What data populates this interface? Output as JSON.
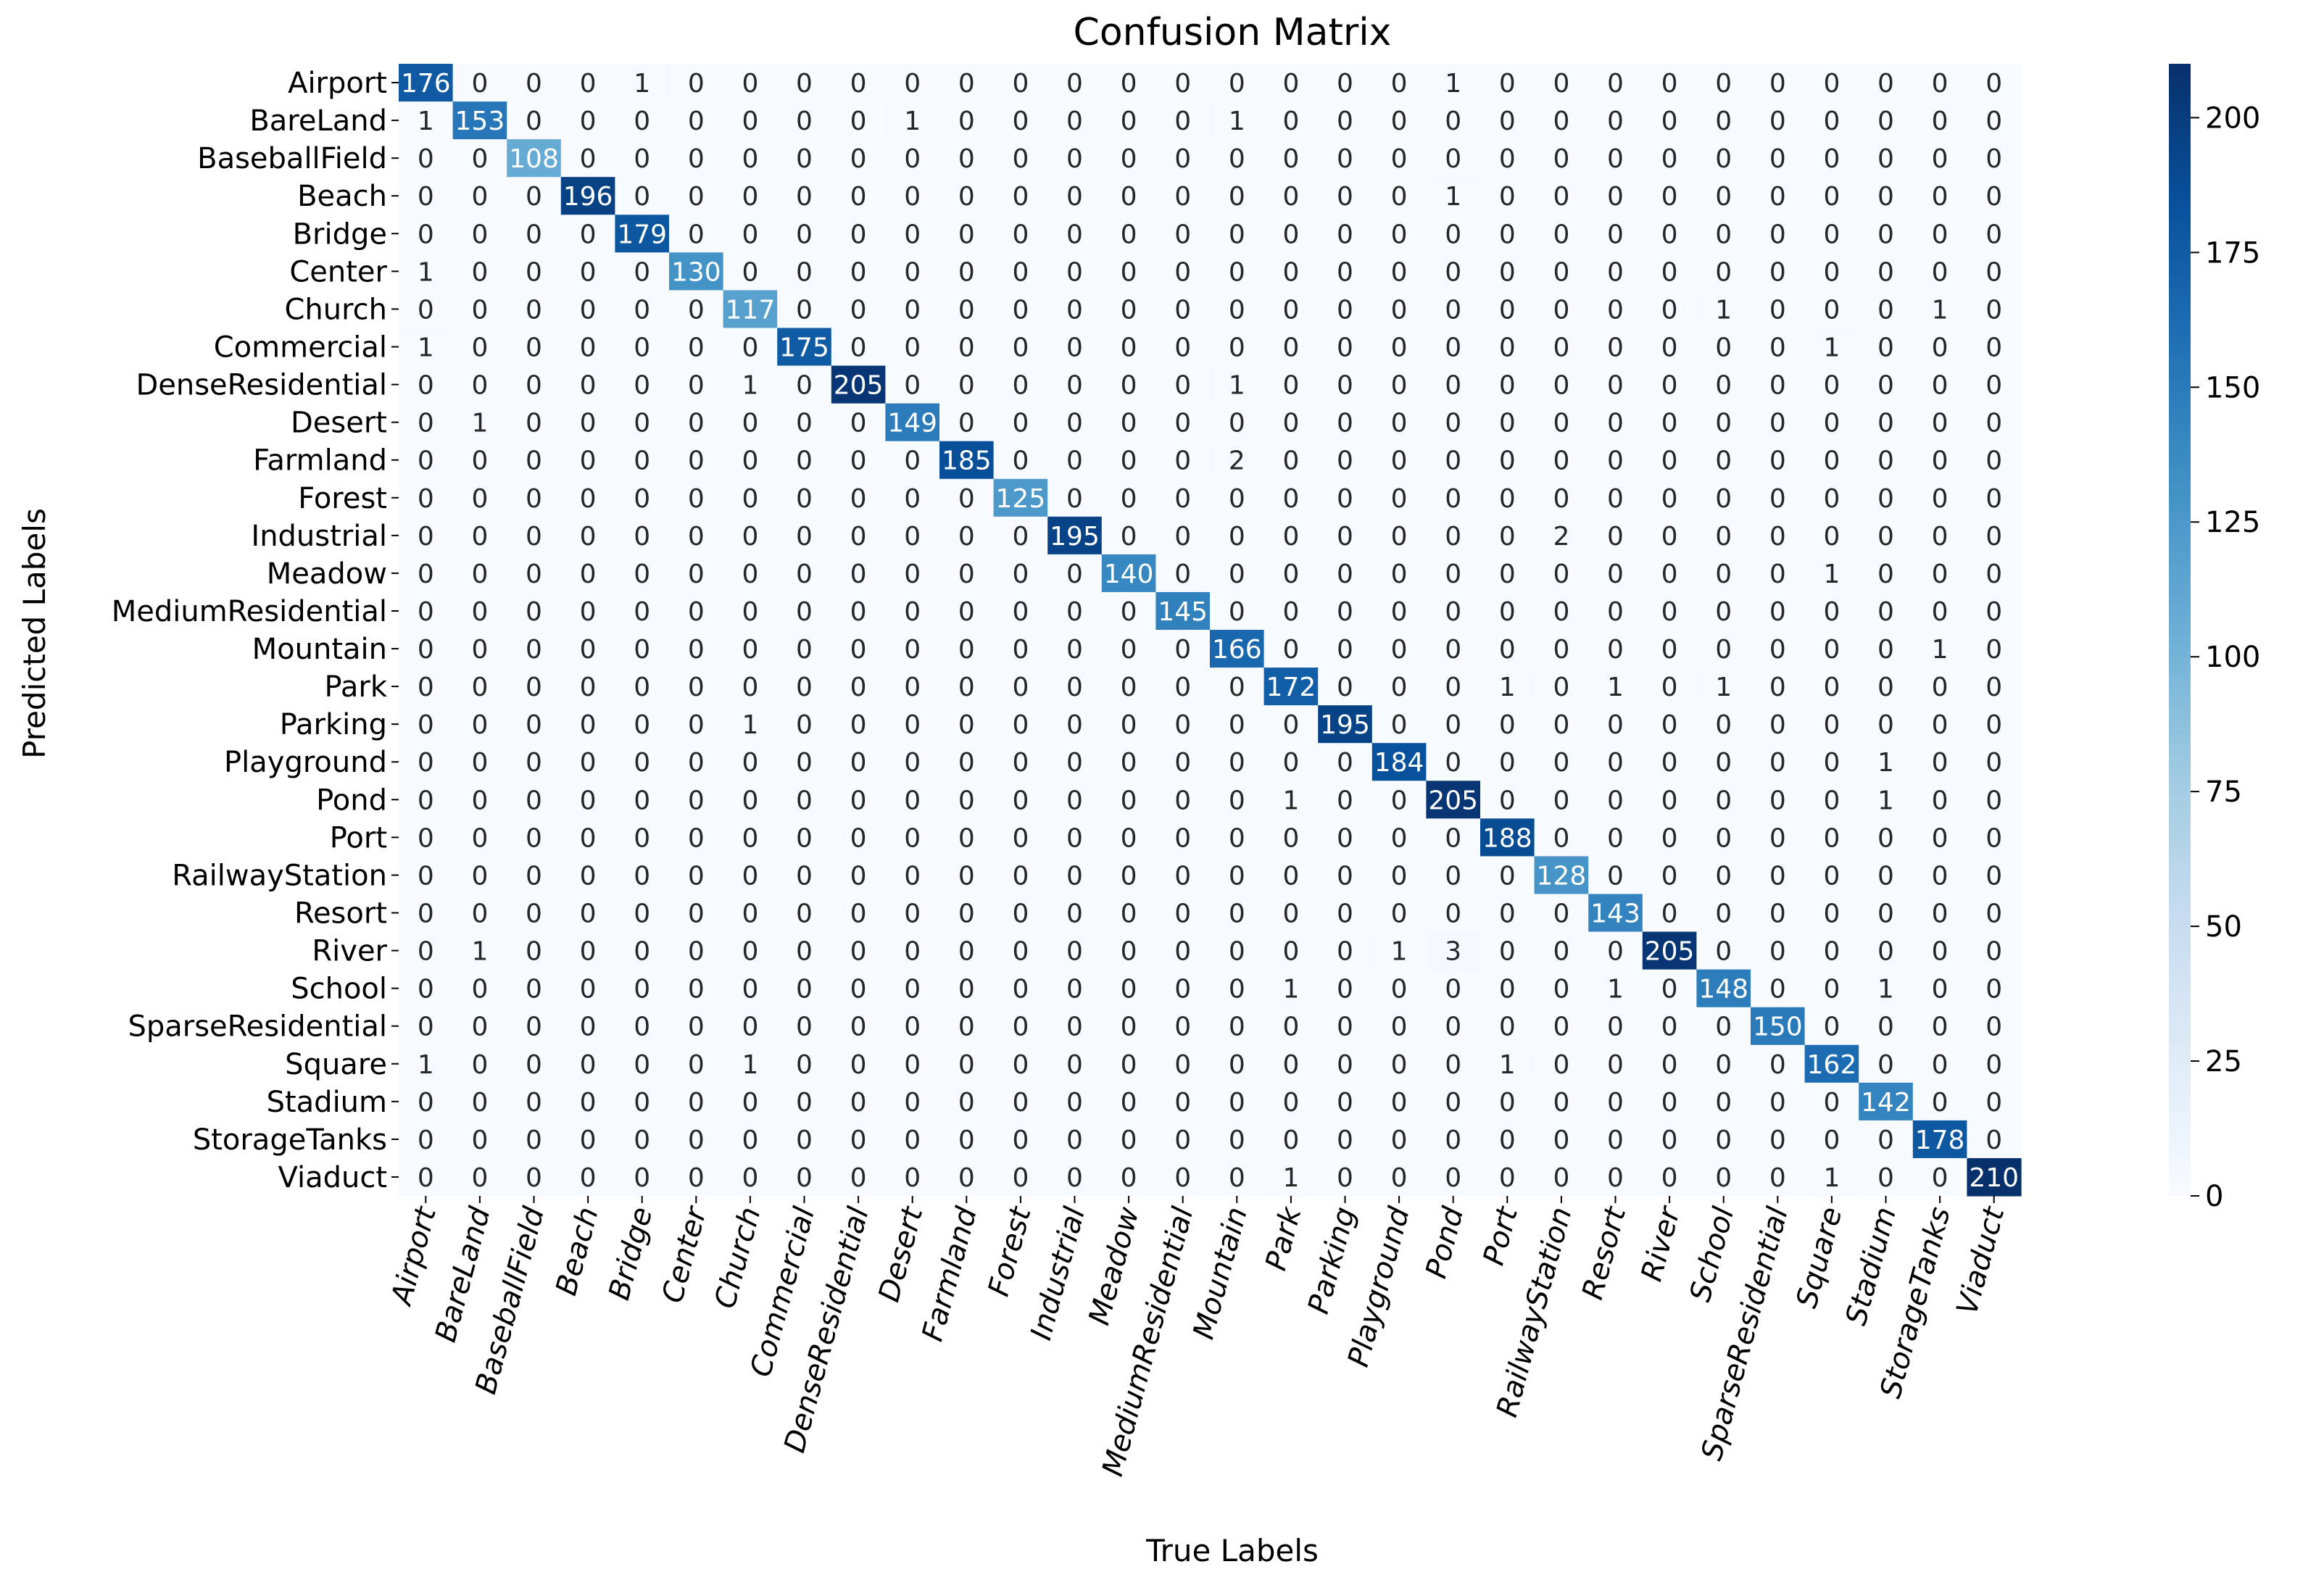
{
  "chart_data": {
    "type": "heatmap",
    "title": "Confusion Matrix",
    "xlabel": "True Labels",
    "ylabel": "Predicted Labels",
    "categories": [
      "Airport",
      "BareLand",
      "BaseballField",
      "Beach",
      "Bridge",
      "Center",
      "Church",
      "Commercial",
      "DenseResidential",
      "Desert",
      "Farmland",
      "Forest",
      "Industrial",
      "Meadow",
      "MediumResidential",
      "Mountain",
      "Park",
      "Parking",
      "Playground",
      "Pond",
      "Port",
      "RailwayStation",
      "Resort",
      "River",
      "School",
      "SparseResidential",
      "Square",
      "Stadium",
      "StorageTanks",
      "Viaduct"
    ],
    "matrix": [
      [
        176,
        0,
        0,
        0,
        1,
        0,
        0,
        0,
        0,
        0,
        0,
        0,
        0,
        0,
        0,
        0,
        0,
        0,
        0,
        1,
        0,
        0,
        0,
        0,
        0,
        0,
        0,
        0,
        0,
        0
      ],
      [
        1,
        153,
        0,
        0,
        0,
        0,
        0,
        0,
        0,
        1,
        0,
        0,
        0,
        0,
        0,
        1,
        0,
        0,
        0,
        0,
        0,
        0,
        0,
        0,
        0,
        0,
        0,
        0,
        0,
        0
      ],
      [
        0,
        0,
        108,
        0,
        0,
        0,
        0,
        0,
        0,
        0,
        0,
        0,
        0,
        0,
        0,
        0,
        0,
        0,
        0,
        0,
        0,
        0,
        0,
        0,
        0,
        0,
        0,
        0,
        0,
        0
      ],
      [
        0,
        0,
        0,
        196,
        0,
        0,
        0,
        0,
        0,
        0,
        0,
        0,
        0,
        0,
        0,
        0,
        0,
        0,
        0,
        1,
        0,
        0,
        0,
        0,
        0,
        0,
        0,
        0,
        0,
        0
      ],
      [
        0,
        0,
        0,
        0,
        179,
        0,
        0,
        0,
        0,
        0,
        0,
        0,
        0,
        0,
        0,
        0,
        0,
        0,
        0,
        0,
        0,
        0,
        0,
        0,
        0,
        0,
        0,
        0,
        0,
        0
      ],
      [
        1,
        0,
        0,
        0,
        0,
        130,
        0,
        0,
        0,
        0,
        0,
        0,
        0,
        0,
        0,
        0,
        0,
        0,
        0,
        0,
        0,
        0,
        0,
        0,
        0,
        0,
        0,
        0,
        0,
        0
      ],
      [
        0,
        0,
        0,
        0,
        0,
        0,
        117,
        0,
        0,
        0,
        0,
        0,
        0,
        0,
        0,
        0,
        0,
        0,
        0,
        0,
        0,
        0,
        0,
        0,
        1,
        0,
        0,
        0,
        1,
        0
      ],
      [
        1,
        0,
        0,
        0,
        0,
        0,
        0,
        175,
        0,
        0,
        0,
        0,
        0,
        0,
        0,
        0,
        0,
        0,
        0,
        0,
        0,
        0,
        0,
        0,
        0,
        0,
        1,
        0,
        0,
        0
      ],
      [
        0,
        0,
        0,
        0,
        0,
        0,
        1,
        0,
        205,
        0,
        0,
        0,
        0,
        0,
        0,
        1,
        0,
        0,
        0,
        0,
        0,
        0,
        0,
        0,
        0,
        0,
        0,
        0,
        0,
        0
      ],
      [
        0,
        1,
        0,
        0,
        0,
        0,
        0,
        0,
        0,
        149,
        0,
        0,
        0,
        0,
        0,
        0,
        0,
        0,
        0,
        0,
        0,
        0,
        0,
        0,
        0,
        0,
        0,
        0,
        0,
        0
      ],
      [
        0,
        0,
        0,
        0,
        0,
        0,
        0,
        0,
        0,
        0,
        185,
        0,
        0,
        0,
        0,
        2,
        0,
        0,
        0,
        0,
        0,
        0,
        0,
        0,
        0,
        0,
        0,
        0,
        0,
        0
      ],
      [
        0,
        0,
        0,
        0,
        0,
        0,
        0,
        0,
        0,
        0,
        0,
        125,
        0,
        0,
        0,
        0,
        0,
        0,
        0,
        0,
        0,
        0,
        0,
        0,
        0,
        0,
        0,
        0,
        0,
        0
      ],
      [
        0,
        0,
        0,
        0,
        0,
        0,
        0,
        0,
        0,
        0,
        0,
        0,
        195,
        0,
        0,
        0,
        0,
        0,
        0,
        0,
        0,
        2,
        0,
        0,
        0,
        0,
        0,
        0,
        0,
        0
      ],
      [
        0,
        0,
        0,
        0,
        0,
        0,
        0,
        0,
        0,
        0,
        0,
        0,
        0,
        140,
        0,
        0,
        0,
        0,
        0,
        0,
        0,
        0,
        0,
        0,
        0,
        0,
        1,
        0,
        0,
        0
      ],
      [
        0,
        0,
        0,
        0,
        0,
        0,
        0,
        0,
        0,
        0,
        0,
        0,
        0,
        0,
        145,
        0,
        0,
        0,
        0,
        0,
        0,
        0,
        0,
        0,
        0,
        0,
        0,
        0,
        0,
        0
      ],
      [
        0,
        0,
        0,
        0,
        0,
        0,
        0,
        0,
        0,
        0,
        0,
        0,
        0,
        0,
        0,
        166,
        0,
        0,
        0,
        0,
        0,
        0,
        0,
        0,
        0,
        0,
        0,
        0,
        1,
        0
      ],
      [
        0,
        0,
        0,
        0,
        0,
        0,
        0,
        0,
        0,
        0,
        0,
        0,
        0,
        0,
        0,
        0,
        172,
        0,
        0,
        0,
        1,
        0,
        1,
        0,
        1,
        0,
        0,
        0,
        0,
        0
      ],
      [
        0,
        0,
        0,
        0,
        0,
        0,
        1,
        0,
        0,
        0,
        0,
        0,
        0,
        0,
        0,
        0,
        0,
        195,
        0,
        0,
        0,
        0,
        0,
        0,
        0,
        0,
        0,
        0,
        0,
        0
      ],
      [
        0,
        0,
        0,
        0,
        0,
        0,
        0,
        0,
        0,
        0,
        0,
        0,
        0,
        0,
        0,
        0,
        0,
        0,
        184,
        0,
        0,
        0,
        0,
        0,
        0,
        0,
        0,
        1,
        0,
        0
      ],
      [
        0,
        0,
        0,
        0,
        0,
        0,
        0,
        0,
        0,
        0,
        0,
        0,
        0,
        0,
        0,
        0,
        1,
        0,
        0,
        205,
        0,
        0,
        0,
        0,
        0,
        0,
        0,
        1,
        0,
        0
      ],
      [
        0,
        0,
        0,
        0,
        0,
        0,
        0,
        0,
        0,
        0,
        0,
        0,
        0,
        0,
        0,
        0,
        0,
        0,
        0,
        0,
        188,
        0,
        0,
        0,
        0,
        0,
        0,
        0,
        0,
        0
      ],
      [
        0,
        0,
        0,
        0,
        0,
        0,
        0,
        0,
        0,
        0,
        0,
        0,
        0,
        0,
        0,
        0,
        0,
        0,
        0,
        0,
        0,
        128,
        0,
        0,
        0,
        0,
        0,
        0,
        0,
        0
      ],
      [
        0,
        0,
        0,
        0,
        0,
        0,
        0,
        0,
        0,
        0,
        0,
        0,
        0,
        0,
        0,
        0,
        0,
        0,
        0,
        0,
        0,
        0,
        143,
        0,
        0,
        0,
        0,
        0,
        0,
        0
      ],
      [
        0,
        1,
        0,
        0,
        0,
        0,
        0,
        0,
        0,
        0,
        0,
        0,
        0,
        0,
        0,
        0,
        0,
        0,
        1,
        3,
        0,
        0,
        0,
        205,
        0,
        0,
        0,
        0,
        0,
        0
      ],
      [
        0,
        0,
        0,
        0,
        0,
        0,
        0,
        0,
        0,
        0,
        0,
        0,
        0,
        0,
        0,
        0,
        1,
        0,
        0,
        0,
        0,
        0,
        1,
        0,
        148,
        0,
        0,
        1,
        0,
        0
      ],
      [
        0,
        0,
        0,
        0,
        0,
        0,
        0,
        0,
        0,
        0,
        0,
        0,
        0,
        0,
        0,
        0,
        0,
        0,
        0,
        0,
        0,
        0,
        0,
        0,
        0,
        150,
        0,
        0,
        0,
        0
      ],
      [
        1,
        0,
        0,
        0,
        0,
        0,
        1,
        0,
        0,
        0,
        0,
        0,
        0,
        0,
        0,
        0,
        0,
        0,
        0,
        0,
        1,
        0,
        0,
        0,
        0,
        0,
        162,
        0,
        0,
        0
      ],
      [
        0,
        0,
        0,
        0,
        0,
        0,
        0,
        0,
        0,
        0,
        0,
        0,
        0,
        0,
        0,
        0,
        0,
        0,
        0,
        0,
        0,
        0,
        0,
        0,
        0,
        0,
        0,
        142,
        0,
        0
      ],
      [
        0,
        0,
        0,
        0,
        0,
        0,
        0,
        0,
        0,
        0,
        0,
        0,
        0,
        0,
        0,
        0,
        0,
        0,
        0,
        0,
        0,
        0,
        0,
        0,
        0,
        0,
        0,
        0,
        178,
        0
      ],
      [
        0,
        0,
        0,
        0,
        0,
        0,
        0,
        0,
        0,
        0,
        0,
        0,
        0,
        0,
        0,
        0,
        1,
        0,
        0,
        0,
        0,
        0,
        0,
        0,
        0,
        0,
        1,
        0,
        0,
        210
      ]
    ],
    "colormap": "Blues",
    "vmin": 0,
    "vmax": 210,
    "colorbar_ticks": [
      0,
      25,
      50,
      75,
      100,
      125,
      150,
      175,
      200
    ]
  }
}
